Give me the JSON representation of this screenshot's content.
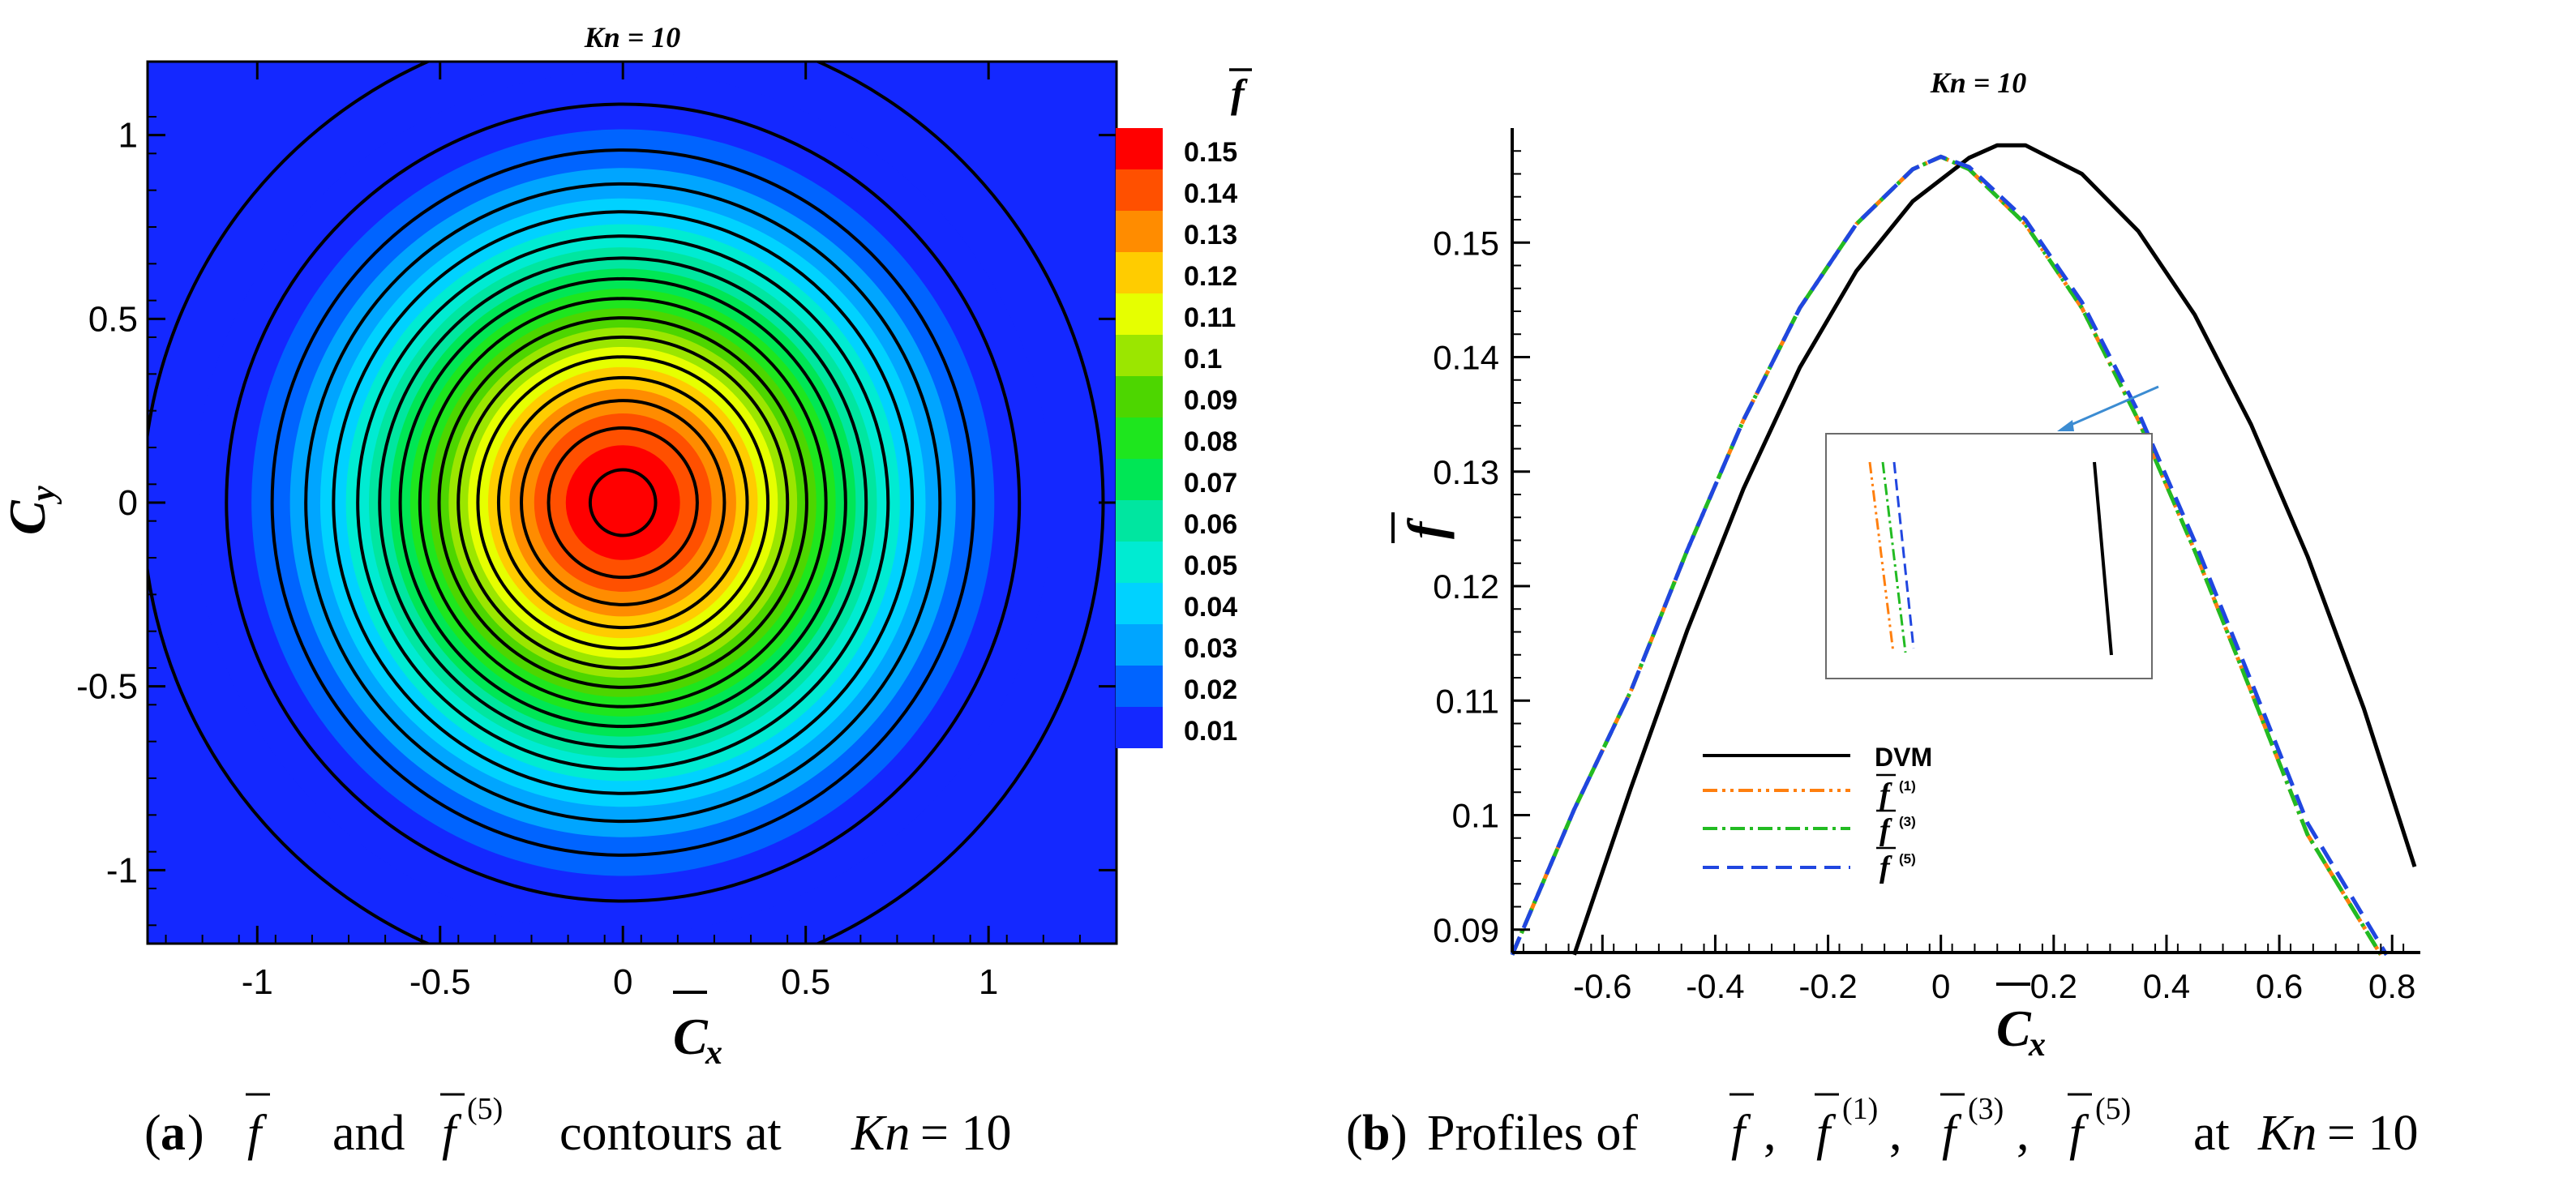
{
  "panel_a": {
    "caption_letter": "a",
    "caption_and": "and",
    "caption_tail": "contours at",
    "sym_f": "f",
    "sup_5": "(5)",
    "kn_symbol": "Kn",
    "kn_eq": "= 10",
    "title": "Kn = 10",
    "colorbar_label": "f"
  },
  "panel_b": {
    "caption_letter": "b",
    "caption_lead": "Profiles of",
    "caption_at": "at",
    "sym_f": "f",
    "sup_1": "(1)",
    "sup_3": "(3)",
    "sup_5": "(5)",
    "kn_symbol": "Kn",
    "kn_eq": "= 10",
    "sep": ",",
    "title": "Kn = 10"
  },
  "chart_data": [
    {
      "type": "heatmap",
      "title": "Kn = 10",
      "xlabel": "C",
      "xlabel_sub": "x",
      "ylabel": "C",
      "ylabel_sub": "y",
      "xlim": [
        -1.3,
        1.35
      ],
      "ylim": [
        -1.2,
        1.2
      ],
      "x_ticks": [
        -1,
        -0.5,
        0,
        0.5,
        1
      ],
      "x_tick_labels": [
        "-1",
        "-0.5",
        "0",
        "0.5",
        "1"
      ],
      "y_ticks": [
        1,
        0.5,
        0,
        -0.5,
        -1
      ],
      "y_tick_labels": [
        "1",
        "0.5",
        "0",
        "-0.5",
        "-1"
      ],
      "colorbar_label": "f",
      "levels": [
        0.15,
        0.14,
        0.13,
        0.12,
        0.11,
        0.1,
        0.09,
        0.08,
        0.07,
        0.06,
        0.05,
        0.04,
        0.03,
        0.02,
        0.01
      ],
      "level_labels": [
        "0.15",
        "0.14",
        "0.13",
        "0.12",
        "0.11",
        "0.1",
        "0.09",
        "0.08",
        "0.07",
        "0.06",
        "0.05",
        "0.04",
        "0.03",
        "0.02",
        "0.01"
      ],
      "level_colors": [
        "#ff0000",
        "#ff5000",
        "#ff8c00",
        "#ffcc00",
        "#e6ff00",
        "#9be600",
        "#4dd600",
        "#1ee61e",
        "#00e655",
        "#00e6a0",
        "#00ebd2",
        "#00d2ff",
        "#00a5ff",
        "#0064ff",
        "#1428ff"
      ],
      "center": [
        0,
        0
      ],
      "peak_value": 0.1575,
      "gaussian_sigma": 0.5
    },
    {
      "type": "line",
      "title": "Kn = 10",
      "xlabel": "C",
      "xlabel_sub": "x",
      "ylabel": "f",
      "xlim": [
        -0.76,
        0.85
      ],
      "ylim": [
        0.088,
        0.16
      ],
      "x_ticks": [
        -0.6,
        -0.4,
        -0.2,
        0,
        0.2,
        0.4,
        0.6,
        0.8
      ],
      "x_tick_labels": [
        "-0.6",
        "-0.4",
        "-0.2",
        "0",
        "0.2",
        "0.4",
        "0.6",
        "0.8"
      ],
      "y_ticks": [
        0.09,
        0.1,
        0.11,
        0.12,
        0.13,
        0.14,
        0.15
      ],
      "y_tick_labels": [
        "0.09",
        "0.1",
        "0.11",
        "0.12",
        "0.13",
        "0.14",
        "0.15"
      ],
      "legend_position": "bottom-left",
      "series": [
        {
          "name": "DVM",
          "legend": "DVM",
          "color": "#000000",
          "dash": "solid",
          "peak_x": 0.1,
          "peak_y": 0.1585,
          "x": [
            -0.65,
            -0.55,
            -0.45,
            -0.35,
            -0.25,
            -0.15,
            -0.05,
            0.05,
            0.1,
            0.15,
            0.25,
            0.35,
            0.45,
            0.55,
            0.65,
            0.75,
            0.84
          ],
          "y": [
            0.0878,
            0.1023,
            0.1161,
            0.1285,
            0.1391,
            0.1475,
            0.1536,
            0.1574,
            0.1585,
            0.1585,
            0.156,
            0.151,
            0.1437,
            0.1341,
            0.1226,
            0.1093,
            0.0955
          ]
        },
        {
          "name": "f(1)",
          "legend": "f",
          "legend_sup": "(1)",
          "color": "#ff7f0e",
          "dash": "dash-dot-dot",
          "peak_x": 0.0,
          "peak_y": 0.1575,
          "x": [
            -0.76,
            -0.65,
            -0.55,
            -0.45,
            -0.35,
            -0.25,
            -0.15,
            -0.05,
            0.0,
            0.05,
            0.15,
            0.25,
            0.35,
            0.45,
            0.55,
            0.65,
            0.78
          ],
          "y": [
            0.0878,
            0.1005,
            0.1108,
            0.1231,
            0.1345,
            0.1443,
            0.1516,
            0.1564,
            0.1575,
            0.1564,
            0.1516,
            0.1443,
            0.1345,
            0.1231,
            0.1108,
            0.0983,
            0.0878
          ]
        },
        {
          "name": "f(3)",
          "legend": "f",
          "legend_sup": "(3)",
          "color": "#22bb22",
          "dash": "dash-dot",
          "peak_x": 0.0,
          "peak_y": 0.1575,
          "x": [
            -0.76,
            -0.65,
            -0.55,
            -0.45,
            -0.35,
            -0.25,
            -0.15,
            -0.05,
            0.0,
            0.05,
            0.15,
            0.25,
            0.35,
            0.45,
            0.55,
            0.65,
            0.78
          ],
          "y": [
            0.0878,
            0.1005,
            0.1108,
            0.1231,
            0.1345,
            0.1443,
            0.1516,
            0.1564,
            0.1575,
            0.1564,
            0.1516,
            0.1443,
            0.1345,
            0.1231,
            0.1108,
            0.0983,
            0.0878
          ]
        },
        {
          "name": "f(5)",
          "legend": "f",
          "legend_sup": "(5)",
          "color": "#2046e0",
          "dash": "dash",
          "peak_x": 0.0,
          "peak_y": 0.1575,
          "x": [
            -0.76,
            -0.65,
            -0.55,
            -0.45,
            -0.35,
            -0.25,
            -0.15,
            -0.05,
            0.0,
            0.05,
            0.15,
            0.25,
            0.35,
            0.45,
            0.55,
            0.65,
            0.79
          ],
          "y": [
            0.0878,
            0.1005,
            0.1108,
            0.1231,
            0.1345,
            0.1443,
            0.1516,
            0.1564,
            0.1575,
            0.1566,
            0.152,
            0.1448,
            0.1352,
            0.1239,
            0.1117,
            0.0993,
            0.0878
          ]
        }
      ],
      "inset": {
        "present": true,
        "description_only": false
      }
    }
  ]
}
